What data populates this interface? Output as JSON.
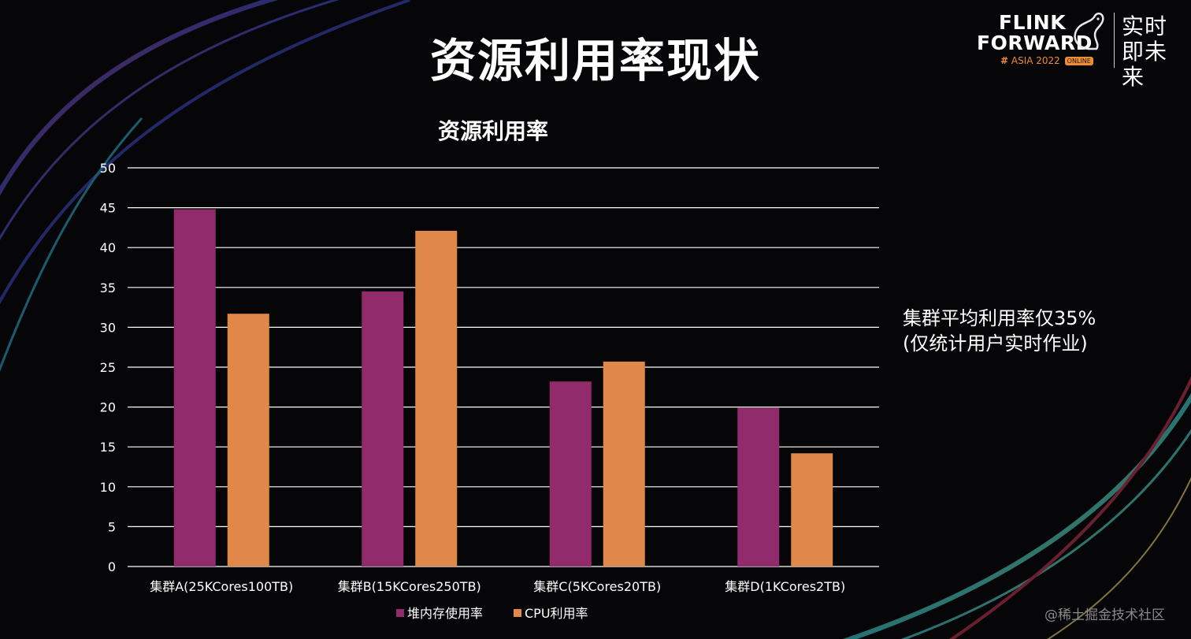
{
  "slide": {
    "title": "资源利用率现状",
    "note_line1": "集群平均利用率仅35%",
    "note_line2": "(仅统计用户实时作业)",
    "watermark": "@稀土掘金技术社区"
  },
  "logo": {
    "line1": "FLINK",
    "line2": "FORWARD",
    "hash": "#",
    "event": "ASIA 2022",
    "badge": "ONLINE",
    "slogan": "实时即未来"
  },
  "colors": {
    "series1": "#922b6b",
    "series2": "#e0874a",
    "grid": "#ffffff",
    "text": "#ffffff",
    "accent": "#f08c32"
  },
  "chart_data": {
    "type": "bar",
    "title": "资源利用率",
    "categories": [
      "集群A(25KCores100TB)",
      "集群B(15KCores250TB)",
      "集群C(5KCores20TB)",
      "集群D(1KCores2TB)"
    ],
    "series": [
      {
        "name": "堆内存使用率",
        "values": [
          44.8,
          34.5,
          23.2,
          19.9
        ]
      },
      {
        "name": "CPU利用率",
        "values": [
          31.7,
          42.1,
          25.7,
          14.2
        ]
      }
    ],
    "ylim": [
      0,
      50
    ],
    "yticks": [
      0,
      5,
      10,
      15,
      20,
      25,
      30,
      35,
      40,
      45,
      50
    ],
    "grid": true,
    "legend_position": "bottom",
    "xlabel": "",
    "ylabel": ""
  }
}
